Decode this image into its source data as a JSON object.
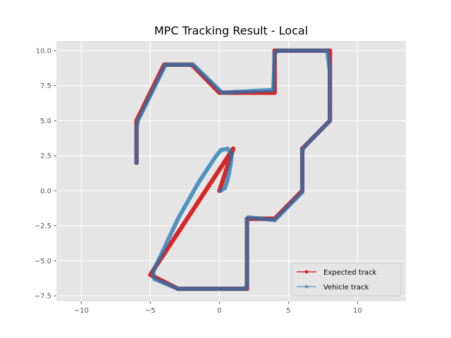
{
  "chart_data": {
    "type": "line",
    "title": "MPC Tracking Result - Local",
    "xlabel": "",
    "ylabel": "",
    "xlim": [
      -11.8,
      13.5
    ],
    "ylim": [
      -7.9,
      10.7
    ],
    "xticks": [
      -10,
      -5,
      0,
      5,
      10
    ],
    "xtick_labels": [
      "−10",
      "−5",
      "0",
      "5",
      "10"
    ],
    "yticks": [
      -7.5,
      -5.0,
      -2.5,
      0.0,
      2.5,
      5.0,
      7.5,
      10.0
    ],
    "ytick_labels": [
      "−7.5",
      "−5.0",
      "−2.5",
      "0.0",
      "2.5",
      "5.0",
      "7.5",
      "10.0"
    ],
    "grid": true,
    "legend_position": "lower-right",
    "colors": {
      "expected": "#d62728",
      "vehicle": "#1f77b4",
      "axes_bg": "#e5e5e5",
      "grid": "#ffffff"
    },
    "series": [
      {
        "name": "Expected track",
        "color": "#d62728",
        "x": [
          0,
          1,
          -5,
          -3,
          2,
          2,
          4,
          6,
          6,
          8,
          8,
          4,
          4,
          0,
          -2,
          -4,
          -6,
          -6
        ],
        "y": [
          0,
          3,
          -6,
          -7,
          -7,
          -2,
          -2,
          0,
          3,
          5,
          10,
          10,
          7,
          7,
          9,
          9,
          5,
          2
        ]
      },
      {
        "name": "Vehicle track",
        "color": "#1f77b4",
        "x": [
          0.1,
          0.4,
          0.6,
          0.8,
          0.9,
          0.6,
          0.1,
          -0.3,
          -1.5,
          -3.0,
          -4.8,
          -4.7,
          -3.0,
          1.9,
          2.0,
          2.0,
          2.1,
          4.0,
          6.0,
          6.0,
          6.2,
          8.0,
          8.0,
          7.8,
          4.2,
          4.0,
          3.9,
          0.2,
          -1.9,
          -3.9,
          -5.9,
          -6.0,
          -6.0
        ],
        "y": [
          0.0,
          0.2,
          0.8,
          1.8,
          2.6,
          3.0,
          2.9,
          2.4,
          0.6,
          -2.0,
          -5.8,
          -6.3,
          -7.0,
          -7.0,
          -6.7,
          -2.0,
          -1.9,
          -2.1,
          -0.1,
          2.9,
          3.2,
          5.0,
          8.5,
          10.0,
          10.0,
          9.8,
          7.2,
          7.0,
          9.0,
          9.0,
          5.0,
          4.5,
          2.0
        ]
      }
    ]
  }
}
